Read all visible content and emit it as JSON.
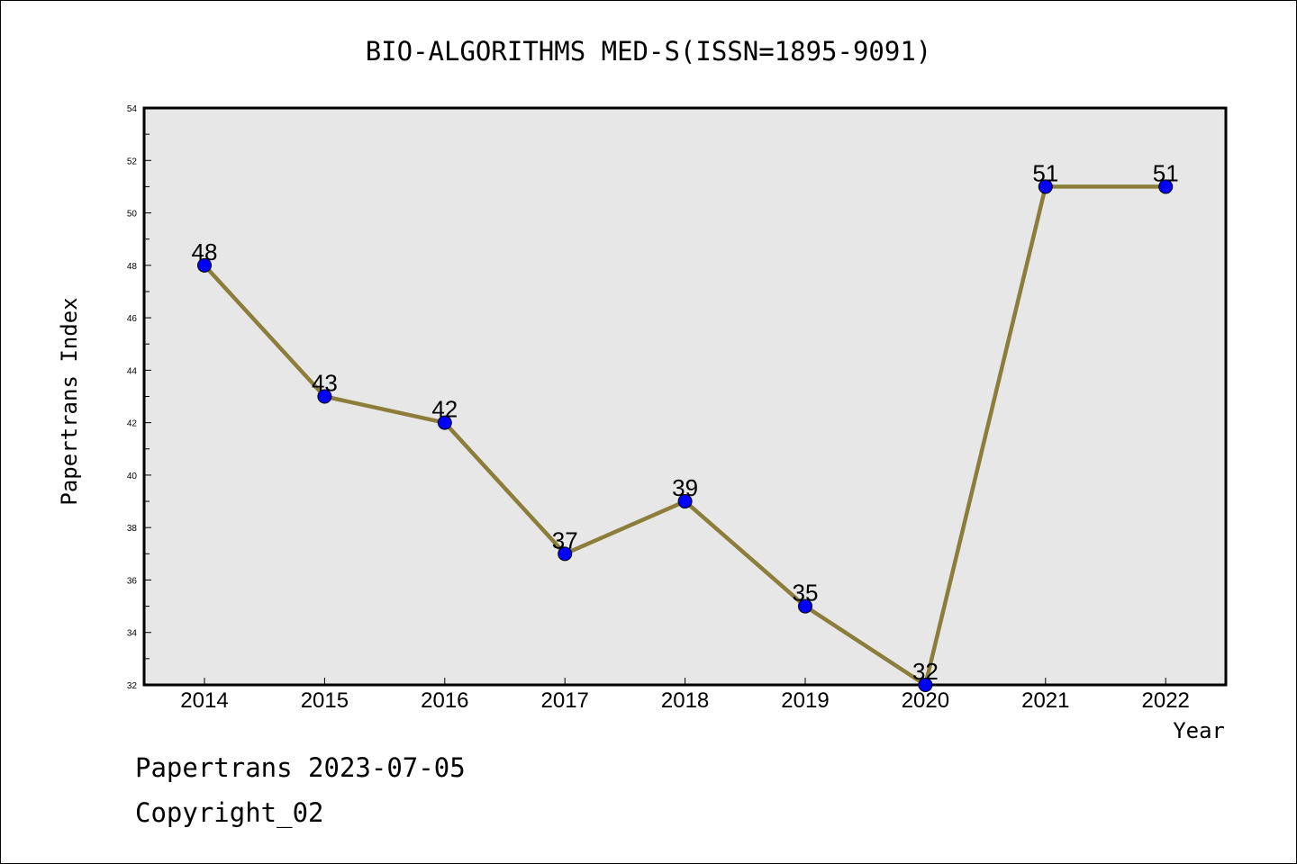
{
  "chart_data": {
    "type": "line",
    "title": "BIO-ALGORITHMS MED-S(ISSN=1895-9091)",
    "xlabel": "Year",
    "ylabel": "Papertrans Index",
    "categories": [
      "2014",
      "2015",
      "2016",
      "2017",
      "2018",
      "2019",
      "2020",
      "2021",
      "2022"
    ],
    "series": [
      {
        "values": [
          48,
          43,
          42,
          37,
          39,
          35,
          32,
          51,
          51
        ]
      }
    ],
    "ylim": [
      32,
      54
    ],
    "yticks": [
      "32",
      "34",
      "36",
      "38",
      "40",
      "42",
      "44",
      "46",
      "48",
      "50",
      "52",
      "54"
    ],
    "grid": false,
    "legend": "none",
    "colors": {
      "line": "#8c7d3a",
      "marker": "#0000ff",
      "plot_background": "#e7e7e7"
    }
  },
  "footer": {
    "date_text": "Papertrans 2023-07-05",
    "copyright_text": "Copyright_02"
  }
}
